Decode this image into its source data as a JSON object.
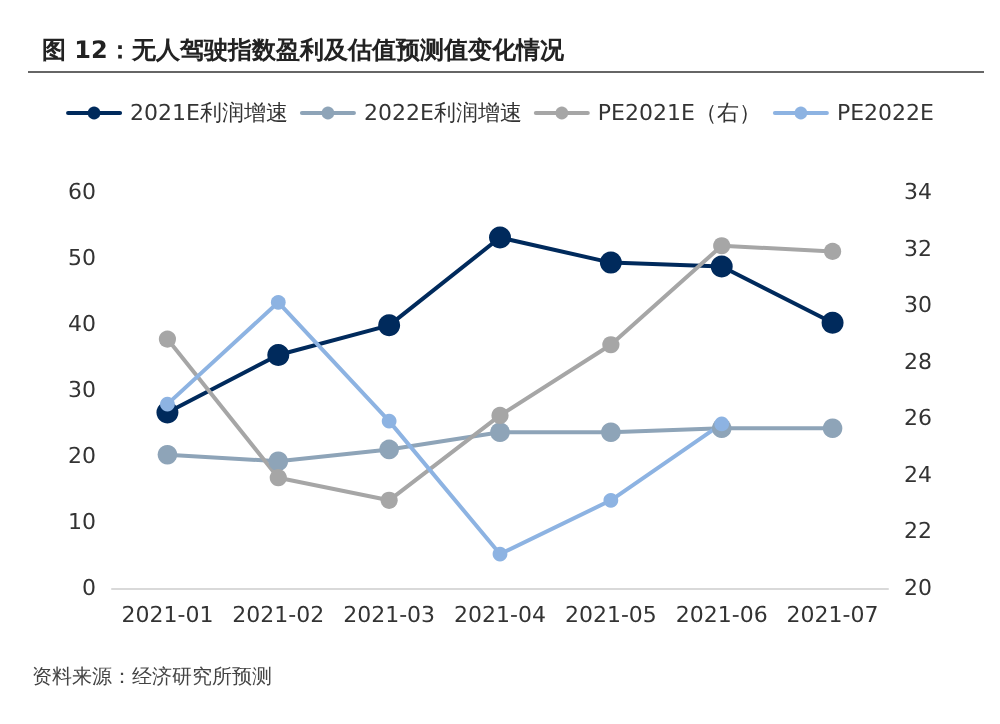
{
  "chart_data": {
    "type": "line",
    "title": "图 12：无人驾驶指数盈利及估值预测值变化情况",
    "categories": [
      "2021-01",
      "2021-02",
      "2021-03",
      "2021-04",
      "2021-05",
      "2021-06",
      "2021-07"
    ],
    "series": [
      {
        "name": "2021E利润增速",
        "color": "#002a5c",
        "values": [
          26.6,
          35.3,
          39.8,
          53.1,
          49.3,
          48.7,
          40.2
        ]
      },
      {
        "name": "2022E利润增速",
        "color": "#8ea4b8",
        "values": [
          20.2,
          19.2,
          21.0,
          23.6,
          23.6,
          24.2,
          24.2
        ]
      },
      {
        "name": "PE2021E（右）",
        "color": "#a6a6a6",
        "axis": "y2",
        "values": [
          28.8,
          23.9,
          23.1,
          26.1,
          28.6,
          32.1,
          31.9
        ]
      },
      {
        "name": "PE2022E",
        "color": "#8db3e2",
        "axis": "y2",
        "values": [
          26.5,
          30.1,
          25.9,
          21.2,
          23.1,
          25.8,
          null
        ]
      }
    ],
    "ylim": [
      0,
      60
    ],
    "yticks": [
      0,
      10,
      20,
      30,
      40,
      50,
      60
    ],
    "y2lim": [
      20,
      34
    ],
    "y2ticks": [
      20,
      22,
      24,
      26,
      28,
      30,
      32,
      34
    ],
    "legend": "top",
    "grid": false,
    "marker": "circle",
    "line_style": "solid",
    "annotations": [
      "资料来源：经济研究所预测"
    ]
  }
}
